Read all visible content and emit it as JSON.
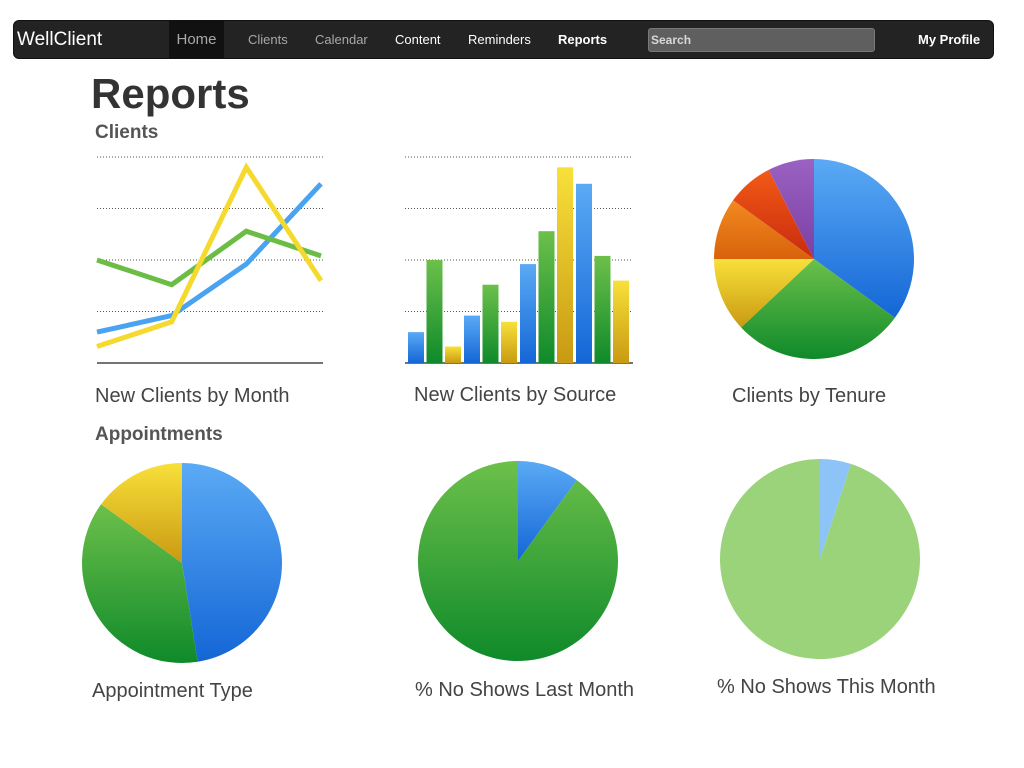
{
  "nav": {
    "brand": "WellClient",
    "home": "Home",
    "links": [
      "Clients",
      "Calendar",
      "Content",
      "Reminders",
      "Reports"
    ],
    "search_placeholder": "Search",
    "profile": "My Profile"
  },
  "page": {
    "title": "Reports",
    "sections": [
      "Clients",
      "Appointments"
    ]
  },
  "colors": {
    "blue": "#3f8fe0",
    "green": "#3aa535",
    "yellow": "#f1d320",
    "orange": "#e8780e",
    "red": "#e03b10",
    "purple": "#8a4fb3",
    "light_green": "#9ad37a",
    "light_blue": "#8cc4f7"
  },
  "chart_data": [
    {
      "type": "line",
      "title": "New Clients by Month",
      "x": [
        1,
        2,
        3,
        4
      ],
      "ylim": [
        0,
        100
      ],
      "grid": true,
      "series": [
        {
          "color": "blue",
          "values": [
            15,
            23,
            48,
            87
          ]
        },
        {
          "color": "green",
          "values": [
            50,
            38,
            64,
            52
          ]
        },
        {
          "color": "yellow",
          "values": [
            8,
            20,
            95,
            40
          ]
        }
      ]
    },
    {
      "type": "bar",
      "title": "New Clients by Source",
      "categories": [
        "1",
        "2",
        "3",
        "4"
      ],
      "ylim": [
        0,
        100
      ],
      "grid": true,
      "series": [
        {
          "color": "blue",
          "values": [
            15,
            23,
            48,
            87
          ]
        },
        {
          "color": "green",
          "values": [
            50,
            38,
            64,
            52
          ]
        },
        {
          "color": "yellow",
          "values": [
            8,
            20,
            95,
            40
          ]
        }
      ]
    },
    {
      "type": "pie",
      "title": "Clients by Tenure",
      "slices": [
        {
          "color": "blue",
          "value": 35
        },
        {
          "color": "green",
          "value": 28
        },
        {
          "color": "yellow",
          "value": 12
        },
        {
          "color": "orange",
          "value": 10
        },
        {
          "color": "red",
          "value": 7.5
        },
        {
          "color": "purple",
          "value": 7.5
        }
      ]
    },
    {
      "type": "pie",
      "title": "Appointment Type",
      "slices": [
        {
          "color": "blue",
          "value": 47.5
        },
        {
          "color": "green",
          "value": 37.5
        },
        {
          "color": "yellow",
          "value": 15
        }
      ]
    },
    {
      "type": "pie",
      "title": "% No Shows Last Month",
      "slices": [
        {
          "color": "blue",
          "value": 10
        },
        {
          "color": "green",
          "value": 90
        }
      ]
    },
    {
      "type": "pie",
      "title": "% No Shows This Month",
      "slices": [
        {
          "color": "light_blue",
          "value": 5
        },
        {
          "color": "light_green",
          "value": 95
        }
      ]
    }
  ]
}
